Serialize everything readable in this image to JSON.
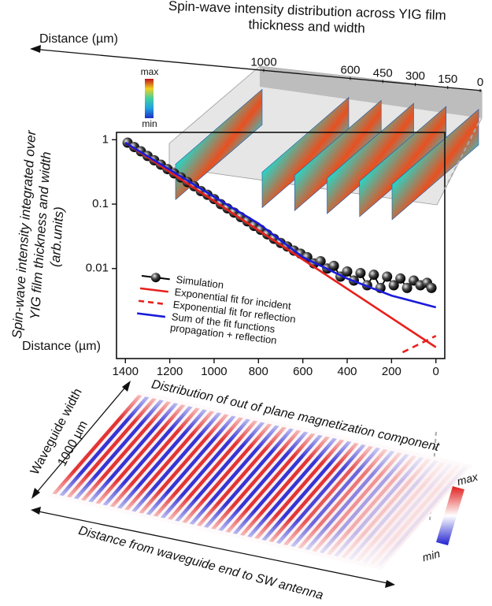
{
  "top_panel": {
    "title": "Spin-wave intensity distribution across YIG film thickness and width",
    "axis_label": "Distance (µm)",
    "ticks": [
      1000,
      600,
      450,
      300,
      150,
      0
    ],
    "colorbar": {
      "max": "max",
      "min": "min"
    }
  },
  "chart_data": {
    "type": "line",
    "ylabel": "Spin-wave intensity integrated over YIG film thickness and width (arb.units)",
    "xlabel": "Distance (µm)",
    "xlim": [
      1440,
      -40
    ],
    "xticks": [
      1400,
      1200,
      1000,
      800,
      600,
      400,
      200,
      0
    ],
    "ylim": [
      0.0004,
      1.3
    ],
    "yticks": [
      1,
      0.1,
      0.01
    ],
    "yscale": "log",
    "series": [
      {
        "name": "Simulation",
        "color": "#000000",
        "style": "solid",
        "marker": "circle",
        "x": [
          1390,
          1360,
          1330,
          1300,
          1270,
          1240,
          1210,
          1180,
          1150,
          1120,
          1090,
          1060,
          1030,
          1000,
          970,
          940,
          910,
          880,
          850,
          820,
          790,
          760,
          730,
          700,
          670,
          640,
          610,
          580,
          550,
          520,
          490,
          460,
          430,
          400,
          370,
          340,
          310,
          280,
          250,
          220,
          190,
          160,
          130,
          100,
          70,
          40,
          20
        ],
        "values": [
          0.9,
          0.77,
          0.66,
          0.56,
          0.48,
          0.41,
          0.35,
          0.3,
          0.26,
          0.22,
          0.19,
          0.16,
          0.14,
          0.12,
          0.1,
          0.086,
          0.074,
          0.063,
          0.054,
          0.046,
          0.04,
          0.034,
          0.029,
          0.025,
          0.022,
          0.019,
          0.017,
          0.015,
          0.012,
          0.013,
          0.01,
          0.011,
          0.0075,
          0.009,
          0.0065,
          0.0085,
          0.0055,
          0.008,
          0.005,
          0.0075,
          0.0055,
          0.007,
          0.005,
          0.0065,
          0.0055,
          0.006,
          0.005
        ]
      },
      {
        "name": "Exponential fit for incident",
        "color": "#e8201c",
        "style": "solid",
        "x": [
          1400,
          0
        ],
        "values": [
          0.9,
          0.0006
        ]
      },
      {
        "name": "Exponential fit for reflection",
        "color": "#e8201c",
        "style": "dashed",
        "x": [
          150,
          0
        ],
        "values": [
          0.0005,
          0.0009
        ]
      },
      {
        "name": "Sum of the fit functions propagation + reflection",
        "color": "#1a1adb",
        "style": "solid",
        "x": [
          1400,
          1000,
          800,
          600,
          400,
          200,
          0
        ],
        "values": [
          0.9,
          0.13,
          0.05,
          0.015,
          0.007,
          0.0038,
          0.0025
        ]
      }
    ]
  },
  "bottom_panel": {
    "title": "Distribution of out of plane magnetization component",
    "width_label": "Waveguide width",
    "width_value": "1000 µm",
    "length_label": "Distance from waveguide end to SW antenna",
    "colorbar": {
      "max": "max",
      "min": "min"
    }
  }
}
